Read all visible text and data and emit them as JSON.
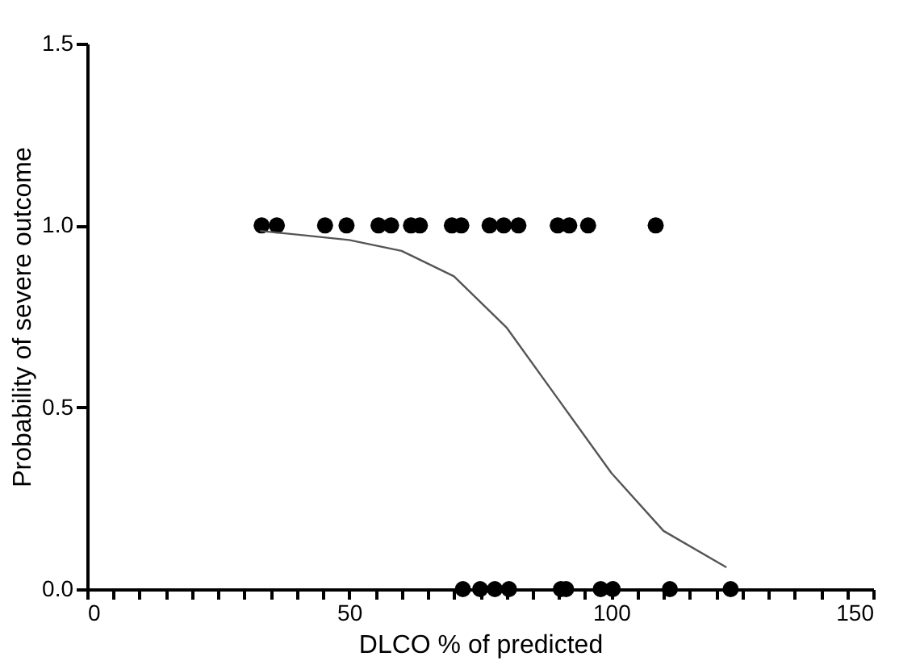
{
  "chart_data": {
    "type": "scatter",
    "xlabel": "DLCO % of predicted",
    "ylabel": "Probability of severe outcome",
    "xlim": [
      0,
      150
    ],
    "ylim": [
      0,
      1.5
    ],
    "xticks": [
      0,
      {
        "value": 5,
        "label": null
      },
      {
        "value": 10,
        "label": null
      },
      {
        "value": 15,
        "label": null
      },
      {
        "value": 20,
        "label": null
      },
      {
        "value": 25,
        "label": null
      },
      {
        "value": 30,
        "label": null
      },
      {
        "value": 35,
        "label": null
      },
      {
        "value": 40,
        "label": null
      },
      {
        "value": 45,
        "label": null
      },
      50,
      {
        "value": 55,
        "label": null
      },
      {
        "value": 60,
        "label": null
      },
      {
        "value": 65,
        "label": null
      },
      {
        "value": 70,
        "label": null
      },
      {
        "value": 75,
        "label": null
      },
      {
        "value": 80,
        "label": null
      },
      {
        "value": 85,
        "label": null
      },
      {
        "value": 90,
        "label": null
      },
      {
        "value": 95,
        "label": null
      },
      100,
      {
        "value": 105,
        "label": null
      },
      {
        "value": 110,
        "label": null
      },
      {
        "value": 115,
        "label": null
      },
      {
        "value": 120,
        "label": null
      },
      {
        "value": 125,
        "label": null
      },
      {
        "value": 130,
        "label": null
      },
      {
        "value": 135,
        "label": null
      },
      {
        "value": 140,
        "label": null
      },
      {
        "value": 145,
        "label": null
      },
      150
    ],
    "yticks": [
      {
        "value": 0,
        "label": "0.0"
      },
      {
        "value": 0.5,
        "label": "0.5"
      },
      {
        "value": 1,
        "label": "1.0"
      },
      {
        "value": 1.5,
        "label": "1.5"
      }
    ],
    "grid": false,
    "marker": "circle",
    "series": [
      {
        "color": "#000000",
        "x": [
          33.3,
          36.2,
          45.4,
          49.5,
          55.6,
          58,
          61.8,
          63.5,
          69.6,
          71.4,
          76.8,
          79.5,
          82.3,
          89.8,
          92,
          95.6,
          108.5,
          71.7,
          75,
          77.8,
          80.5,
          90.4,
          91.4,
          98,
          100.3,
          111.2,
          122.8
        ],
        "values": [
          1,
          1,
          1,
          1,
          1,
          1,
          1,
          1,
          1,
          1,
          1,
          1,
          1,
          1,
          1,
          1,
          1,
          0,
          0,
          0,
          0,
          0,
          0,
          0,
          0,
          0,
          0
        ]
      },
      {
        "type": "line",
        "color": "#555555",
        "marker": "none",
        "line_style": "solid",
        "x": [
          33,
          40,
          50,
          60,
          70,
          80,
          90,
          100,
          110,
          122
        ],
        "values": [
          0.985,
          0.975,
          0.96,
          0.93,
          0.86,
          0.72,
          0.52,
          0.32,
          0.16,
          0.06
        ]
      }
    ]
  }
}
